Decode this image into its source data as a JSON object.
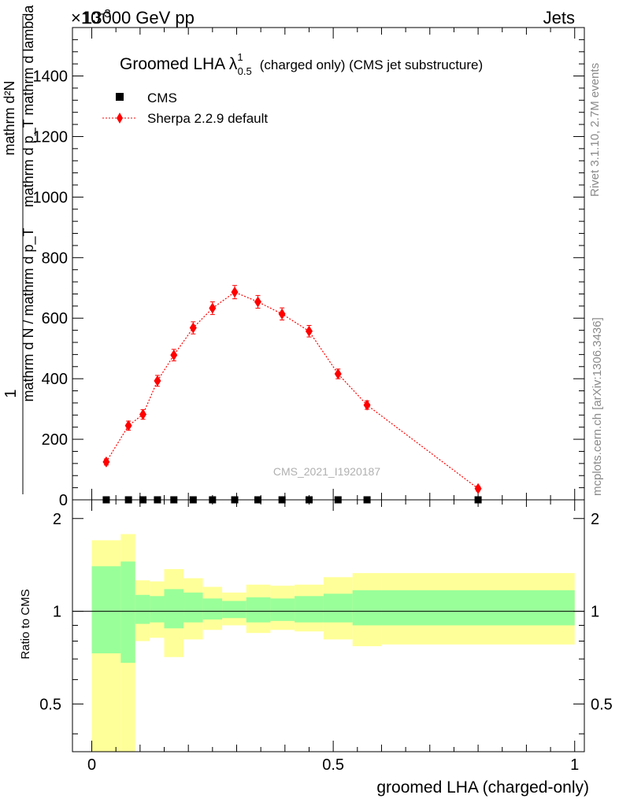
{
  "header": {
    "energy_label": "13000 GeV pp",
    "category_label": "Jets",
    "exponent_label": "×10",
    "exponent_value": "-3"
  },
  "side_labels": {
    "rivet": "Rivet 3.1.10,  2.7M events",
    "mcplots": "mcplots.cern.ch [arXiv:1306.3436]"
  },
  "watermark": "CMS_2021_I1920187",
  "chart_data": [
    {
      "type": "scatter",
      "title": "Groomed LHA λ",
      "title_sup": "1",
      "title_sub": "0.5",
      "title_suffix": "(charged only) (CMS jet substructure)",
      "xlabel": "",
      "ylabel_numerator": "mathrm d²N",
      "ylabel_denominator": "mathrm d p_T mathrm d lambda",
      "ylabel_prefix": "1",
      "ylabel_prefix_den": "mathrm d N / mathrm d p_T",
      "xlim": [
        -0.04,
        1.02
      ],
      "ylim": [
        0,
        1560
      ],
      "yticks": [
        0,
        200,
        400,
        600,
        800,
        1000,
        1200,
        1400
      ],
      "ytick_labels": [
        "0",
        "200",
        "400",
        "600",
        "800",
        "1000",
        "1200",
        "1400"
      ],
      "legend_position": "top-left",
      "series": [
        {
          "name": "CMS",
          "marker": "square",
          "color": "#000000",
          "x": [
            0.03,
            0.076,
            0.106,
            0.136,
            0.17,
            0.21,
            0.25,
            0.296,
            0.344,
            0.394,
            0.45,
            0.51,
            0.57,
            0.8
          ],
          "y": [
            0,
            0,
            0,
            0,
            0,
            0,
            0,
            0,
            0,
            0,
            0,
            0,
            0,
            0
          ]
        },
        {
          "name": "Sherpa 2.2.9 default",
          "marker": "diamond",
          "line": "dotted",
          "color": "#ff0000",
          "x": [
            0.03,
            0.076,
            0.106,
            0.136,
            0.17,
            0.21,
            0.25,
            0.296,
            0.344,
            0.394,
            0.45,
            0.51,
            0.57,
            0.8
          ],
          "y": [
            125,
            245,
            282,
            393,
            478,
            568,
            633,
            686,
            654,
            614,
            557,
            416,
            313,
            37
          ],
          "err": [
            10,
            15,
            16,
            18,
            19,
            20,
            21,
            22,
            21,
            20,
            19,
            16,
            14,
            8
          ]
        }
      ]
    },
    {
      "type": "area",
      "xlabel": "groomed LHA (charged-only)",
      "ylabel": "Ratio to CMS",
      "xlim": [
        -0.04,
        1.02
      ],
      "ylim": [
        0.35,
        2.3
      ],
      "yticks": [
        0.5,
        1,
        2
      ],
      "ytick_labels": [
        "0.5",
        "1",
        "2"
      ],
      "xticks": [
        0,
        0.5,
        1
      ],
      "xtick_labels": [
        "0",
        "0.5",
        "1"
      ],
      "reference_line": 1,
      "bins": [
        0,
        0.06,
        0.09,
        0.12,
        0.15,
        0.19,
        0.23,
        0.27,
        0.32,
        0.37,
        0.42,
        0.48,
        0.54,
        0.6,
        1.0
      ],
      "band_1sigma": {
        "color": "#99ff99",
        "low": [
          0.73,
          0.68,
          0.91,
          0.92,
          0.88,
          0.92,
          0.94,
          0.95,
          0.92,
          0.93,
          0.92,
          0.92,
          0.9,
          0.9
        ],
        "high": [
          1.4,
          1.45,
          1.13,
          1.12,
          1.18,
          1.15,
          1.1,
          1.08,
          1.11,
          1.1,
          1.12,
          1.14,
          1.17,
          1.17
        ]
      },
      "band_2sigma": {
        "color": "#ffff99",
        "low": [
          0.3,
          0.3,
          0.8,
          0.82,
          0.71,
          0.81,
          0.87,
          0.9,
          0.85,
          0.87,
          0.86,
          0.81,
          0.77,
          0.78
        ],
        "high": [
          1.7,
          1.78,
          1.26,
          1.25,
          1.37,
          1.28,
          1.2,
          1.15,
          1.22,
          1.21,
          1.22,
          1.29,
          1.33,
          1.33
        ]
      }
    }
  ]
}
